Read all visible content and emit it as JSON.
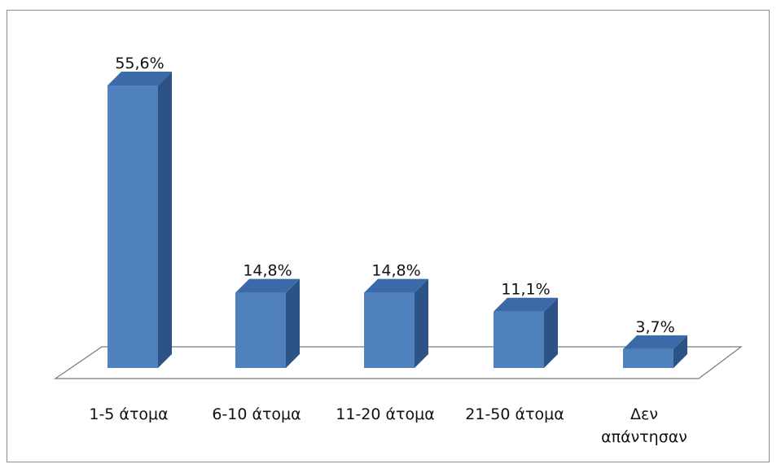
{
  "chart_data": {
    "type": "bar",
    "style": "3d-column",
    "categories": [
      "1-5 άτομα",
      "6-10 άτομα",
      "11-20 άτομα",
      "21-50 άτομα",
      "Δεν απάντησαν"
    ],
    "category_lines": [
      [
        "1-5 άτομα"
      ],
      [
        "6-10 άτομα"
      ],
      [
        "11-20 άτομα"
      ],
      [
        "21-50 άτομα"
      ],
      [
        "Δεν",
        "απάντησαν"
      ]
    ],
    "values": [
      55.6,
      14.8,
      14.8,
      11.1,
      3.7
    ],
    "data_labels": [
      "55,6%",
      "14,8%",
      "14,8%",
      "11,1%",
      "3,7%"
    ],
    "unit": "%",
    "ylim": [
      0,
      55.6
    ],
    "grid": false,
    "legend": "none",
    "colors": {
      "front": "#4f81bd",
      "side": "#2d5285",
      "top": "#3a6aa8",
      "floor_line": "#7a7a7a"
    }
  }
}
